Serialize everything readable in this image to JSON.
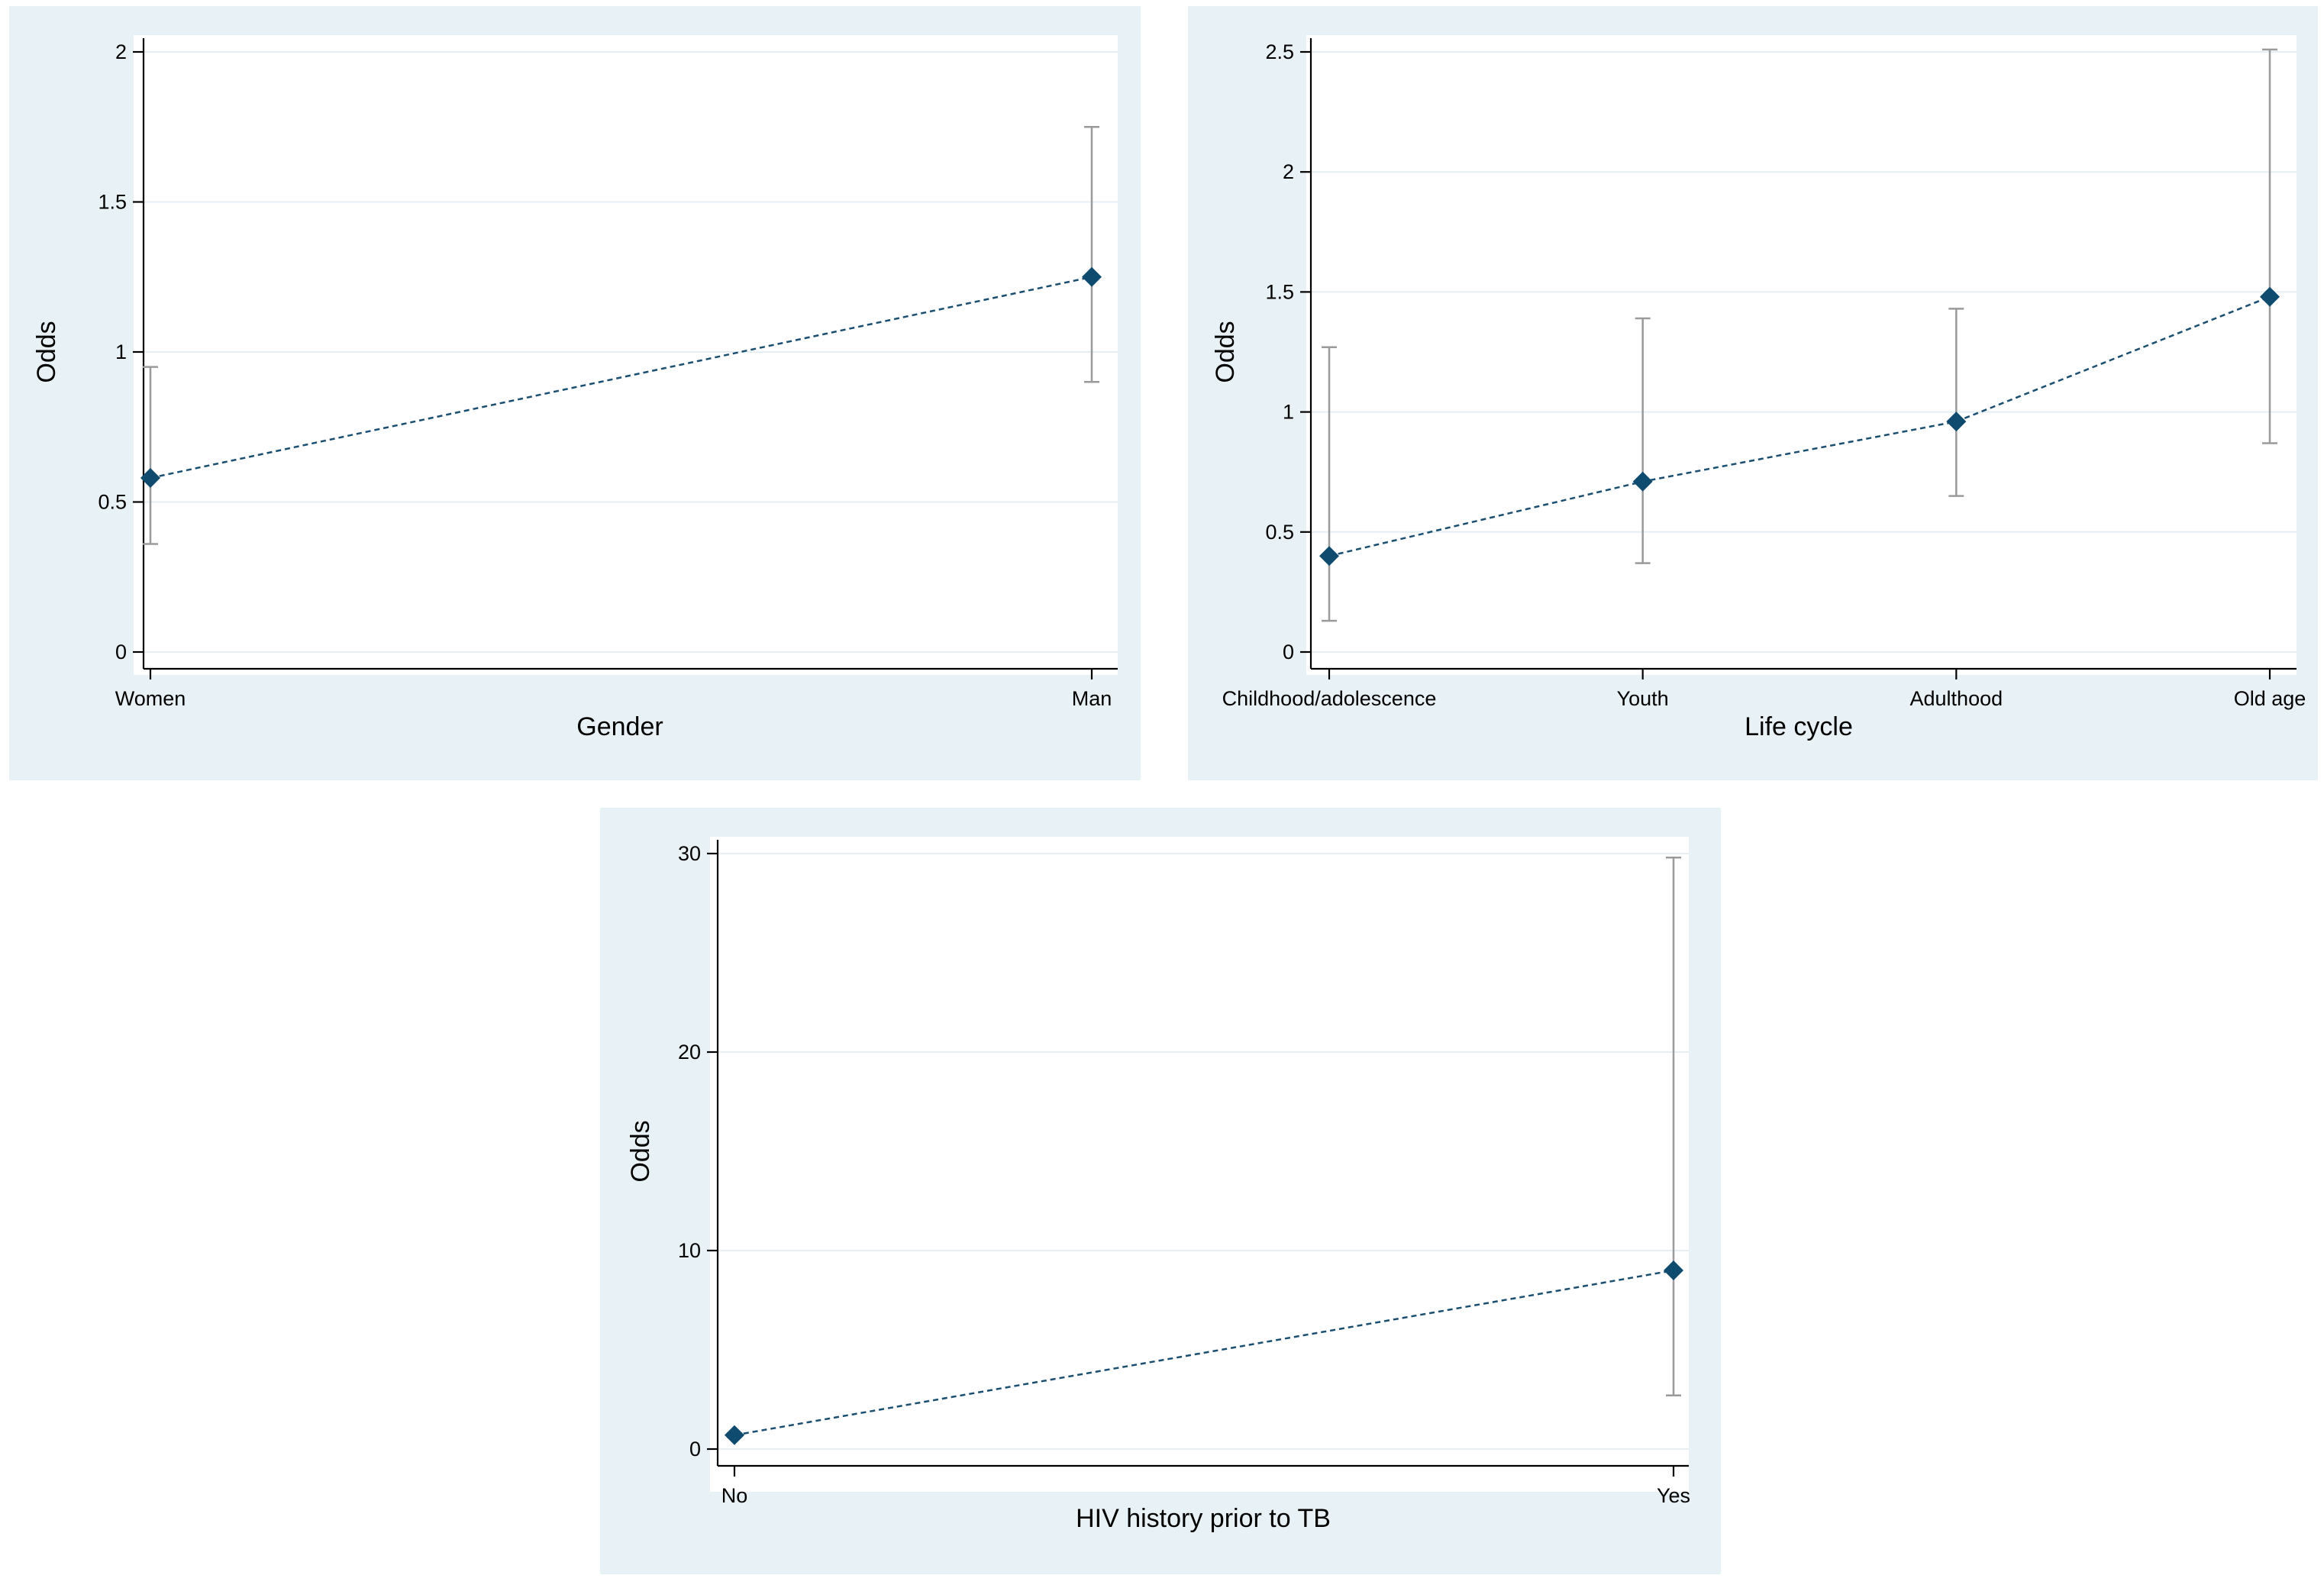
{
  "colors": {
    "panel_background": "#e8f1f5",
    "plot_background": "#ffffff",
    "marker": "#0e4b6f",
    "connecting_line": "#1a4f72",
    "ci_bars": "#9a9a9a",
    "gridlines": "#e5eef2"
  },
  "chart_data": [
    {
      "id": "gender",
      "type": "line",
      "title": "",
      "xlabel": "Gender",
      "ylabel": "Odds",
      "categories": [
        "Women",
        "Man"
      ],
      "values": [
        0.58,
        1.25
      ],
      "ci_lower": [
        0.36,
        0.9
      ],
      "ci_upper": [
        0.95,
        1.75
      ],
      "ylim": [
        0,
        2
      ],
      "yticks": [
        0,
        0.5,
        1,
        1.5,
        2
      ],
      "ytick_labels": [
        "0",
        "0.5",
        "1",
        "1.5",
        "2"
      ],
      "grid": true
    },
    {
      "id": "life-cycle",
      "type": "line",
      "title": "",
      "xlabel": "Life cycle",
      "ylabel": "Odds",
      "categories": [
        "Childhood/adolescence",
        "Youth",
        "Adulthood",
        "Old age"
      ],
      "values": [
        0.4,
        0.71,
        0.96,
        1.48
      ],
      "ci_lower": [
        0.13,
        0.37,
        0.65,
        0.87
      ],
      "ci_upper": [
        1.27,
        1.39,
        1.43,
        2.51
      ],
      "ylim": [
        0,
        2.5
      ],
      "yticks": [
        0,
        0.5,
        1,
        1.5,
        2,
        2.5
      ],
      "ytick_labels": [
        "0",
        "0.5",
        "1",
        "1.5",
        "2",
        "2.5"
      ],
      "grid": true
    },
    {
      "id": "hiv-history",
      "type": "line",
      "title": "",
      "xlabel": "HIV history prior to TB",
      "ylabel": "Odds",
      "categories": [
        "No",
        "Yes"
      ],
      "values": [
        0.7,
        9.0
      ],
      "ci_lower": [
        0.6,
        2.7
      ],
      "ci_upper": [
        0.8,
        29.8
      ],
      "ylim": [
        0,
        30
      ],
      "yticks": [
        0,
        10,
        20,
        30
      ],
      "ytick_labels": [
        "0",
        "10",
        "20",
        "30"
      ],
      "grid": true
    }
  ]
}
